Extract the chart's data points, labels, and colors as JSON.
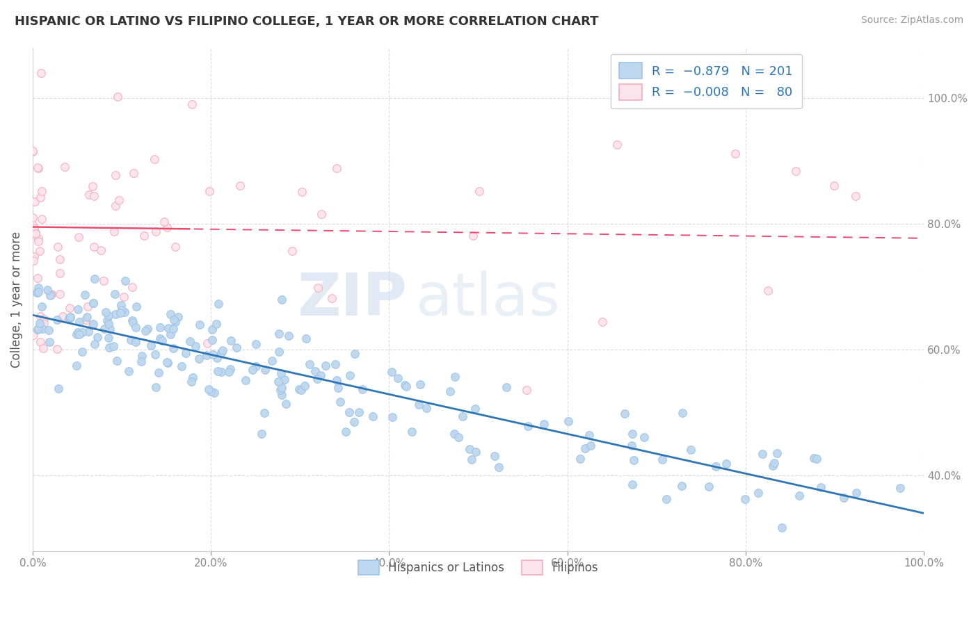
{
  "title": "HISPANIC OR LATINO VS FILIPINO COLLEGE, 1 YEAR OR MORE CORRELATION CHART",
  "source": "Source: ZipAtlas.com",
  "ylabel": "College, 1 year or more",
  "xlim": [
    0.0,
    1.0
  ],
  "ylim": [
    0.28,
    1.08
  ],
  "xticks": [
    0.0,
    0.2,
    0.4,
    0.6,
    0.8,
    1.0
  ],
  "xticklabels": [
    "0.0%",
    "20.0%",
    "40.0%",
    "60.0%",
    "80.0%",
    "100.0%"
  ],
  "yticks": [
    0.4,
    0.6,
    0.8,
    1.0
  ],
  "yticklabels": [
    "40.0%",
    "60.0%",
    "80.0%",
    "100.0%"
  ],
  "blue_color": "#BDD7EE",
  "blue_edge": "#9DC3E6",
  "pink_color": "#FCE4EC",
  "pink_edge": "#F4ACBB",
  "blue_line_color": "#2E75B6",
  "pink_line_solid_color": "#E84B6E",
  "pink_line_dash_color": "#F4ACBB",
  "tick_color": "#5B9BD5",
  "grid_color": "#D0D0D0",
  "legend_label1": "Hispanics or Latinos",
  "legend_label2": "Filipinos",
  "watermark_zip": "ZIP",
  "watermark_atlas": "atlas",
  "blue_intercept": 0.655,
  "blue_slope": -0.315,
  "pink_intercept": 0.795,
  "pink_slope": -0.018
}
